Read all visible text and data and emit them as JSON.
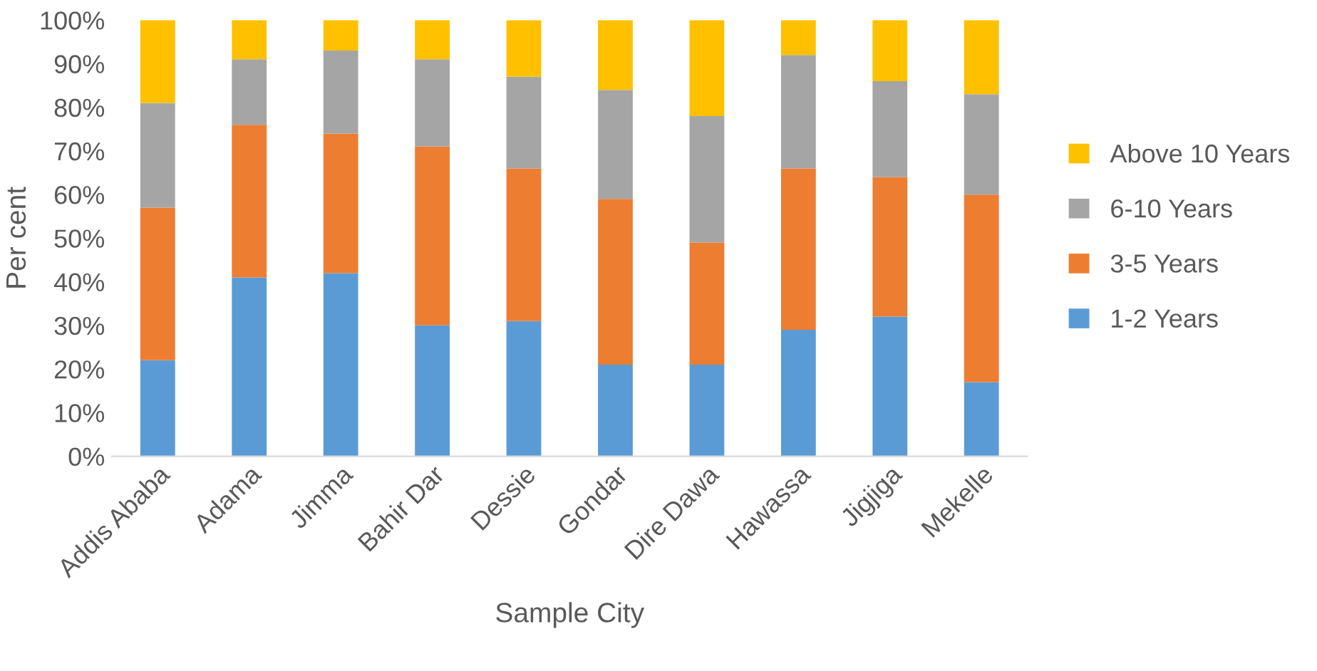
{
  "chart_data": {
    "type": "bar",
    "stacked": true,
    "xlabel": "Sample City",
    "ylabel": "Per cent",
    "categories": [
      "Addis Ababa",
      "Adama",
      "Jimma",
      "Bahir Dar",
      "Dessie",
      "Gondar",
      "Dire Dawa",
      "Hawassa",
      "Jigjiga",
      "Mekelle"
    ],
    "series": [
      {
        "name": "1-2 Years",
        "color": "#5b9bd5",
        "values": [
          22,
          41,
          42,
          30,
          31,
          21,
          21,
          29,
          32,
          17
        ]
      },
      {
        "name": "3-5 Years",
        "color": "#ed7d31",
        "values": [
          35,
          35,
          32,
          41,
          35,
          38,
          28,
          37,
          32,
          43
        ]
      },
      {
        "name": "6-10 Years",
        "color": "#a5a5a5",
        "values": [
          24,
          15,
          19,
          20,
          21,
          25,
          29,
          26,
          22,
          23
        ]
      },
      {
        "name": "Above 10 Years",
        "color": "#ffc000",
        "values": [
          19,
          9,
          7,
          9,
          13,
          16,
          22,
          8,
          14,
          17
        ]
      }
    ],
    "ylim": [
      0,
      100
    ],
    "yticks": [
      {
        "value": 0,
        "label": "0%"
      },
      {
        "value": 10,
        "label": "10%"
      },
      {
        "value": 20,
        "label": "20%"
      },
      {
        "value": 30,
        "label": "30%"
      },
      {
        "value": 40,
        "label": "40%"
      },
      {
        "value": 50,
        "label": "50%"
      },
      {
        "value": 60,
        "label": "60%"
      },
      {
        "value": 70,
        "label": "70%"
      },
      {
        "value": 80,
        "label": "80%"
      },
      {
        "value": 90,
        "label": "90%"
      },
      {
        "value": 100,
        "label": "100%"
      }
    ],
    "grid": false,
    "legend": "right"
  }
}
